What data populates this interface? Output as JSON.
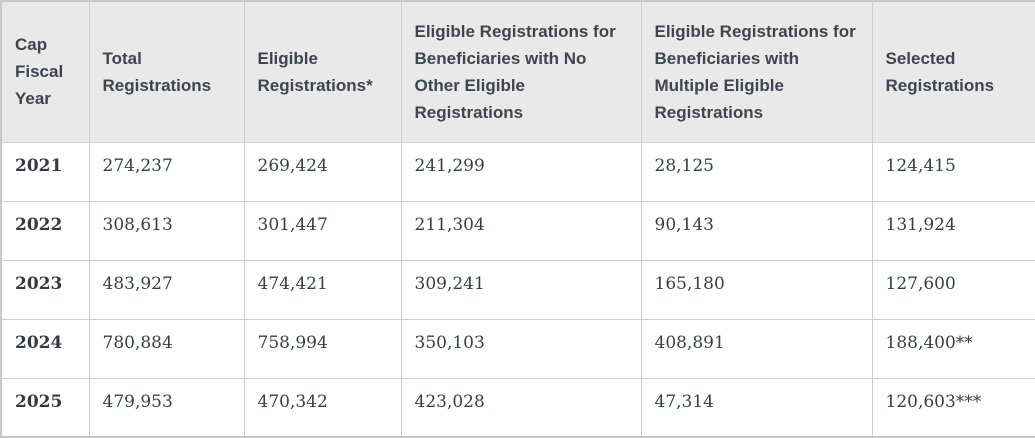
{
  "chart_data": {
    "type": "table",
    "columns": [
      "Cap Fiscal Year",
      "Total Registrations",
      "Eligible Registrations*",
      "Eligible Registrations for Beneficiaries with No Other Eligible Registrations",
      "Eligible Registrations for Beneficiaries with Multiple Eligible Registrations",
      "Selected Registrations"
    ],
    "rows": [
      [
        "2021",
        "274,237",
        "269,424",
        "241,299",
        "28,125",
        "124,415"
      ],
      [
        "2022",
        "308,613",
        "301,447",
        "211,304",
        "90,143",
        "131,924"
      ],
      [
        "2023",
        "483,927",
        "474,421",
        "309,241",
        "165,180",
        "127,600"
      ],
      [
        "2024",
        "780,884",
        "758,994",
        "350,103",
        "408,891",
        "188,400**"
      ],
      [
        "2025",
        "479,953",
        "470,342",
        "423,028",
        "47,314",
        "120,603***"
      ]
    ],
    "layout_hints": {
      "header_row": true,
      "grid": true,
      "first_column_bold": true
    }
  },
  "colors": {
    "header_background": "#e9e9e9",
    "row_background": "#ffffff",
    "inner_border": "#cdcdcd",
    "outer_border": "#c8c8c8",
    "header_text": "#3d4551",
    "cell_text": "#383f48"
  }
}
